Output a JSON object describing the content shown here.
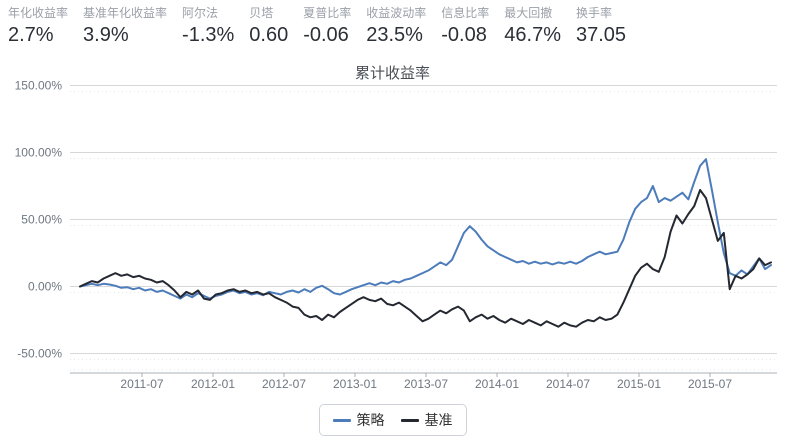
{
  "stats": [
    {
      "label": "年化收益率",
      "value": "2.7%"
    },
    {
      "label": "基准年化收益率",
      "value": "3.9%"
    },
    {
      "label": "阿尔法",
      "value": "-1.3%"
    },
    {
      "label": "贝塔",
      "value": "0.60"
    },
    {
      "label": "夏普比率",
      "value": "-0.06"
    },
    {
      "label": "收益波动率",
      "value": "23.5%"
    },
    {
      "label": "信息比率",
      "value": "-0.08"
    },
    {
      "label": "最大回撤",
      "value": "46.7%"
    },
    {
      "label": "换手率",
      "value": "37.05"
    }
  ],
  "colors": {
    "strategy_line": "#4d7cbb",
    "benchmark_line": "#242830",
    "grid_line": "#d6d8da",
    "grid_minor_dotted": "#e4e7ea",
    "axis_line": "#aab0b6",
    "tick_label": "#6e7781",
    "title_text": "#4a4f55",
    "stat_label": "#9aa0a8",
    "stat_value": "#2b2f36"
  },
  "chart_data": {
    "type": "line",
    "title": "累计收益率",
    "unit": "percent",
    "grid": true,
    "x_range": {
      "start": "2011-01",
      "end": "2015-11",
      "points_per_month": 2
    },
    "x_tick_labels": [
      "2011-07",
      "2012-01",
      "2012-07",
      "2013-01",
      "2013-07",
      "2014-01",
      "2014-07",
      "2015-01",
      "2015-07"
    ],
    "y_ticks": [
      {
        "label": "150.00%",
        "value": 150
      },
      {
        "label": "100.00%",
        "value": 100
      },
      {
        "label": "50.00%",
        "value": 50
      },
      {
        "label": "0.00%",
        "value": 0
      },
      {
        "label": "-50.00%",
        "value": -50
      }
    ],
    "ylim": [
      -65,
      150
    ],
    "legend": {
      "position": "bottom",
      "items": [
        {
          "label": "策略",
          "color": "#4d7cbb"
        },
        {
          "label": "基准",
          "color": "#242830"
        }
      ]
    },
    "series": [
      {
        "name": "策略",
        "color": "#4d7cbb",
        "values": [
          0,
          1,
          2,
          1,
          2,
          1.5,
          0.5,
          -1,
          -0.5,
          -2,
          -1,
          -3,
          -2,
          -4,
          -3,
          -5,
          -7,
          -9,
          -6,
          -8,
          -5,
          -7,
          -9,
          -7,
          -6,
          -4,
          -3,
          -5,
          -4,
          -6,
          -5,
          -6.5,
          -4,
          -5,
          -6,
          -4,
          -3,
          -4.5,
          -2,
          -4,
          -1,
          0.5,
          -2,
          -5,
          -6,
          -4,
          -2,
          -0.5,
          1,
          2.5,
          1,
          3,
          2,
          4,
          3,
          5,
          6,
          8,
          10,
          12,
          15,
          18,
          16,
          20,
          30,
          40,
          45,
          41,
          35,
          30,
          27,
          24,
          22,
          20,
          18,
          19,
          17,
          18.5,
          17,
          18,
          16.5,
          18,
          17,
          18.5,
          17,
          19,
          22,
          24,
          26,
          24,
          25,
          26,
          35,
          48,
          58,
          63,
          66,
          75,
          63,
          66,
          64,
          67,
          70,
          65,
          78,
          90,
          95,
          72,
          48,
          25,
          10,
          8,
          12,
          9,
          15,
          21,
          13,
          16
        ]
      },
      {
        "name": "基准",
        "color": "#242830",
        "values": [
          0,
          2,
          4,
          3,
          6,
          8,
          10,
          8,
          9,
          7,
          8,
          6,
          5,
          3,
          4,
          1,
          -3,
          -8,
          -4,
          -6,
          -3,
          -9,
          -10,
          -6,
          -5,
          -3,
          -2,
          -4,
          -3,
          -5,
          -4,
          -6,
          -5,
          -8,
          -10,
          -12,
          -15,
          -16,
          -21,
          -23,
          -22,
          -25,
          -21,
          -23,
          -19,
          -16,
          -13,
          -10,
          -8,
          -10,
          -11,
          -9,
          -13,
          -14,
          -12,
          -15,
          -18,
          -22,
          -26,
          -24,
          -21,
          -18,
          -20,
          -17,
          -15,
          -18,
          -26,
          -23,
          -21,
          -24,
          -22,
          -25,
          -27,
          -24,
          -26,
          -28,
          -25,
          -27,
          -29,
          -26,
          -28,
          -30,
          -27,
          -29,
          -30,
          -27,
          -25,
          -26,
          -23,
          -25,
          -24,
          -21,
          -12,
          -2,
          8,
          14,
          17,
          13,
          11,
          22,
          41,
          53,
          47,
          54,
          60,
          72,
          66,
          50,
          34,
          40,
          -2,
          8,
          6,
          9,
          13,
          21,
          16,
          18
        ]
      }
    ]
  }
}
